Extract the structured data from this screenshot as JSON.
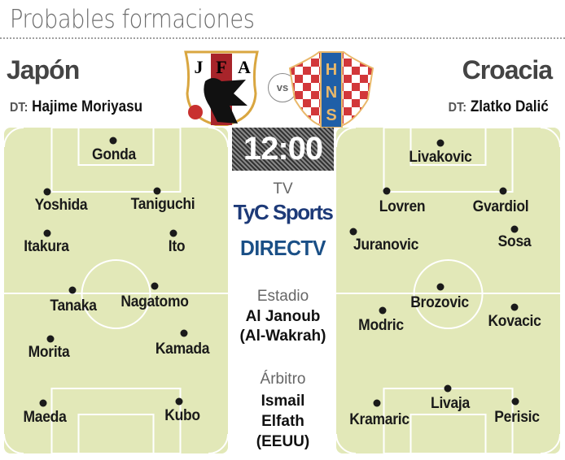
{
  "title": "Probables formaciones",
  "home": {
    "name": "Japón",
    "coach_label": "DT:",
    "coach": "Hajime Moriyasu",
    "logo_text": "JFA",
    "players": [
      {
        "name": "Gonda",
        "dot": [
          139,
          173
        ],
        "label": [
          140,
          180
        ]
      },
      {
        "name": "Yoshida",
        "dot": [
          58,
          236
        ],
        "label": [
          75,
          242
        ]
      },
      {
        "name": "Taniguchi",
        "dot": [
          193,
          235
        ],
        "label": [
          200,
          241
        ]
      },
      {
        "name": "Itakura",
        "dot": [
          58,
          287
        ],
        "label": [
          57,
          293
        ]
      },
      {
        "name": "Ito",
        "dot": [
          213,
          287
        ],
        "label": [
          217,
          293
        ]
      },
      {
        "name": "Tanaka",
        "dot": [
          89,
          357
        ],
        "label": [
          90,
          366
        ]
      },
      {
        "name": "Nagatomo",
        "dot": [
          190,
          352
        ],
        "label": [
          190,
          361
        ]
      },
      {
        "name": "Morita",
        "dot": [
          62,
          417
        ],
        "label": [
          60,
          423
        ]
      },
      {
        "name": "Kamada",
        "dot": [
          226,
          410
        ],
        "label": [
          224,
          419
        ]
      },
      {
        "name": "Maeda",
        "dot": [
          53,
          496
        ],
        "label": [
          55,
          503
        ]
      },
      {
        "name": "Kubo",
        "dot": [
          220,
          494
        ],
        "label": [
          224,
          501
        ]
      }
    ]
  },
  "away": {
    "name": "Croacia",
    "coach_label": "DT:",
    "coach": "Zlatko Dalić",
    "logo_text": "HNS",
    "players": [
      {
        "name": "Livakovic",
        "dot": [
          541,
          176
        ],
        "label": [
          541,
          183
        ]
      },
      {
        "name": "Lovren",
        "dot": [
          475,
          235
        ],
        "label": [
          494,
          244
        ]
      },
      {
        "name": "Gvardiol",
        "dot": [
          618,
          235
        ],
        "label": [
          615,
          244
        ]
      },
      {
        "name": "Juranovic",
        "dot": [
          434,
          285
        ],
        "label": [
          474,
          291
        ]
      },
      {
        "name": "Sosa",
        "dot": [
          632,
          282
        ],
        "label": [
          632,
          287
        ]
      },
      {
        "name": "Brozovic",
        "dot": [
          541,
          353
        ],
        "label": [
          540,
          362
        ]
      },
      {
        "name": "Modric",
        "dot": [
          470,
          382
        ],
        "label": [
          468,
          390
        ]
      },
      {
        "name": "Kovacic",
        "dot": [
          632,
          378
        ],
        "label": [
          632,
          385
        ]
      },
      {
        "name": "Kramaric",
        "dot": [
          463,
          496
        ],
        "label": [
          466,
          506
        ]
      },
      {
        "name": "Livaja",
        "dot": [
          550,
          478
        ],
        "label": [
          553,
          486
        ]
      },
      {
        "name": "Perisic",
        "dot": [
          633,
          494
        ],
        "label": [
          635,
          503
        ]
      }
    ]
  },
  "vs": "vs",
  "time": "12:00",
  "tv": {
    "label": "TV",
    "channels": [
      "TyC Sports",
      "DIRECTV"
    ]
  },
  "stadium": {
    "label": "Estadio",
    "lines": [
      "Al Janoub",
      "(Al-Wakrah)"
    ]
  },
  "referee": {
    "label": "Árbitro",
    "lines": [
      "Ismail",
      "Elfath",
      "(EEUU)"
    ]
  },
  "colors": {
    "field": "#e2e8b8",
    "tyc": "#1d3a78",
    "directv": "#1a4f86",
    "croatia_red": "#d2373a",
    "croatia_blue": "#1f5fa8",
    "japan_red": "#a8242a"
  }
}
